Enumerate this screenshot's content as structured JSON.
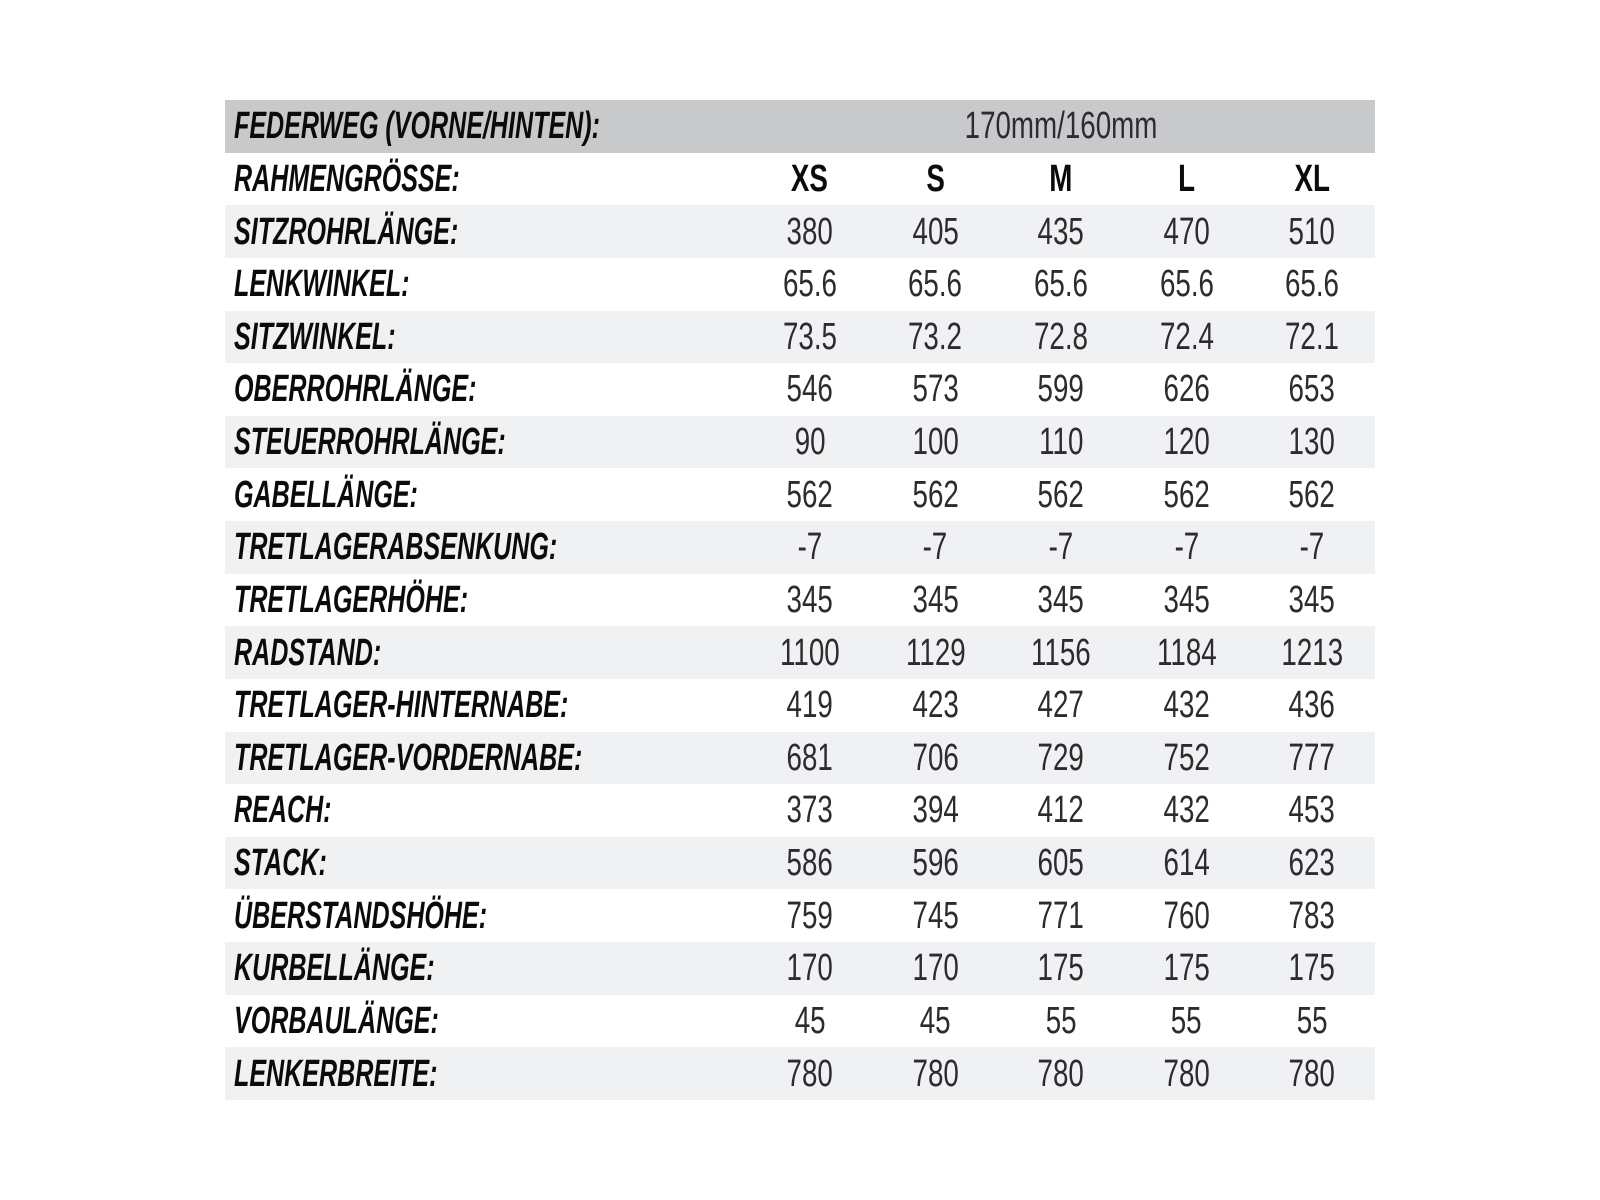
{
  "page": {
    "background": "#ffffff"
  },
  "table": {
    "colors": {
      "header_bg": "#c8c9cb",
      "stripe_bg": "#f0f1f3",
      "row_bg": "#ffffff",
      "label_text": "#0b0b0c",
      "value_text": "#2c2c2e"
    },
    "travel_row": {
      "label": "FEDERWEG (VORNE/HINTEN):",
      "value": "170mm/160mm"
    },
    "size_row": {
      "label": "RAHMENGRÖSSE:",
      "sizes": [
        "XS",
        "S",
        "M",
        "L",
        "XL"
      ]
    },
    "rows": [
      {
        "label": "SITZROHRLÄNGE:",
        "values": [
          "380",
          "405",
          "435",
          "470",
          "510"
        ]
      },
      {
        "label": "LENKWINKEL:",
        "values": [
          "65.6",
          "65.6",
          "65.6",
          "65.6",
          "65.6"
        ]
      },
      {
        "label": "SITZWINKEL:",
        "values": [
          "73.5",
          "73.2",
          "72.8",
          "72.4",
          "72.1"
        ]
      },
      {
        "label": "OBERROHRLÄNGE:",
        "values": [
          "546",
          "573",
          "599",
          "626",
          "653"
        ]
      },
      {
        "label": "STEUERROHRLÄNGE:",
        "values": [
          "90",
          "100",
          "110",
          "120",
          "130"
        ]
      },
      {
        "label": "GABELLÄNGE:",
        "values": [
          "562",
          "562",
          "562",
          "562",
          "562"
        ]
      },
      {
        "label": "TRETLAGERABSENKUNG:",
        "values": [
          "-7",
          "-7",
          "-7",
          "-7",
          "-7"
        ]
      },
      {
        "label": "TRETLAGERHÖHE:",
        "values": [
          "345",
          "345",
          "345",
          "345",
          "345"
        ]
      },
      {
        "label": "RADSTAND:",
        "values": [
          "1100",
          "1129",
          "1156",
          "1184",
          "1213"
        ]
      },
      {
        "label": "TRETLAGER-HINTERNABE:",
        "values": [
          "419",
          "423",
          "427",
          "432",
          "436"
        ]
      },
      {
        "label": "TRETLAGER-VORDERNABE:",
        "values": [
          "681",
          "706",
          "729",
          "752",
          "777"
        ]
      },
      {
        "label": "REACH:",
        "values": [
          "373",
          "394",
          "412",
          "432",
          "453"
        ]
      },
      {
        "label": "STACK:",
        "values": [
          "586",
          "596",
          "605",
          "614",
          "623"
        ]
      },
      {
        "label": "ÜBERSTANDSHÖHE:",
        "values": [
          "759",
          "745",
          "771",
          "760",
          "783"
        ]
      },
      {
        "label": "KURBELLÄNGE:",
        "values": [
          "170",
          "170",
          "175",
          "175",
          "175"
        ]
      },
      {
        "label": "VORBAULÄNGE:",
        "values": [
          "45",
          "45",
          "55",
          "55",
          "55"
        ]
      },
      {
        "label": "LENKERBREITE:",
        "values": [
          "780",
          "780",
          "780",
          "780",
          "780"
        ]
      }
    ]
  },
  "chart_data": {
    "type": "table",
    "header_row": {
      "label": "FEDERWEG (VORNE/HINTEN):",
      "value": "170mm/160mm"
    },
    "column_header_label": "RAHMENGRÖSSE:",
    "columns": [
      "XS",
      "S",
      "M",
      "L",
      "XL"
    ],
    "rows": [
      {
        "label": "SITZROHRLÄNGE:",
        "values": [
          380,
          405,
          435,
          470,
          510
        ]
      },
      {
        "label": "LENKWINKEL:",
        "values": [
          65.6,
          65.6,
          65.6,
          65.6,
          65.6
        ]
      },
      {
        "label": "SITZWINKEL:",
        "values": [
          73.5,
          73.2,
          72.8,
          72.4,
          72.1
        ]
      },
      {
        "label": "OBERROHRLÄNGE:",
        "values": [
          546,
          573,
          599,
          626,
          653
        ]
      },
      {
        "label": "STEUERROHRLÄNGE:",
        "values": [
          90,
          100,
          110,
          120,
          130
        ]
      },
      {
        "label": "GABELLÄNGE:",
        "values": [
          562,
          562,
          562,
          562,
          562
        ]
      },
      {
        "label": "TRETLAGERABSENKUNG:",
        "values": [
          -7,
          -7,
          -7,
          -7,
          -7
        ]
      },
      {
        "label": "TRETLAGERHÖHE:",
        "values": [
          345,
          345,
          345,
          345,
          345
        ]
      },
      {
        "label": "RADSTAND:",
        "values": [
          1100,
          1129,
          1156,
          1184,
          1213
        ]
      },
      {
        "label": "TRETLAGER-HINTERNABE:",
        "values": [
          419,
          423,
          427,
          432,
          436
        ]
      },
      {
        "label": "TRETLAGER-VORDERNABE:",
        "values": [
          681,
          706,
          729,
          752,
          777
        ]
      },
      {
        "label": "REACH:",
        "values": [
          373,
          394,
          412,
          432,
          453
        ]
      },
      {
        "label": "STACK:",
        "values": [
          586,
          596,
          605,
          614,
          623
        ]
      },
      {
        "label": "ÜBERSTANDSHÖHE:",
        "values": [
          759,
          745,
          771,
          760,
          783
        ]
      },
      {
        "label": "KURBELLÄNGE:",
        "values": [
          170,
          170,
          175,
          175,
          175
        ]
      },
      {
        "label": "VORBAULÄNGE:",
        "values": [
          45,
          45,
          55,
          55,
          55
        ]
      },
      {
        "label": "LENKERBREITE:",
        "values": [
          780,
          780,
          780,
          780,
          780
        ]
      }
    ],
    "layout": {
      "striped": true,
      "header_band_color": "#c8c9cb",
      "stripe_color": "#f0f1f3"
    }
  }
}
